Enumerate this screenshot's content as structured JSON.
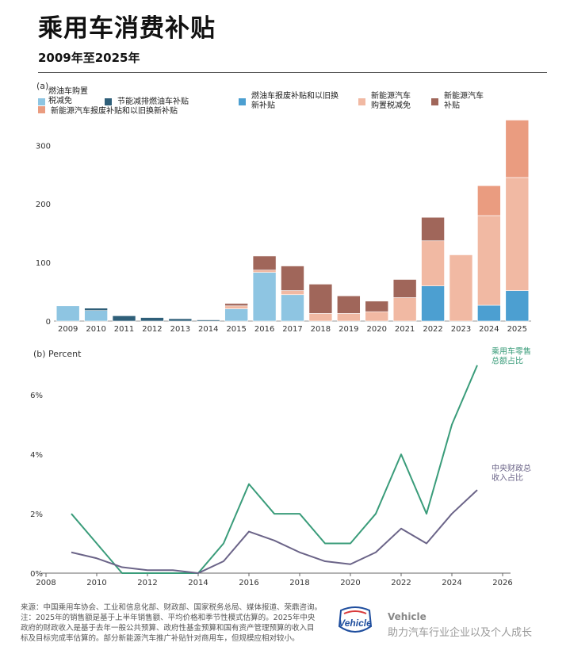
{
  "title": "乘用车消费补贴",
  "subtitle": "2009年至2025年",
  "chart_data": [
    {
      "type": "bar",
      "stacked": true,
      "panel_label": "(a)",
      "categories": [
        "2009",
        "2010",
        "2011",
        "2012",
        "2013",
        "2014",
        "2015",
        "2016",
        "2017",
        "2018",
        "2019",
        "2020",
        "2021",
        "2022",
        "2023",
        "2024",
        "2025"
      ],
      "ylim": [
        0,
        345
      ],
      "yticks": [
        0,
        100,
        200,
        300
      ],
      "ytick_labels": [
        "0",
        "100",
        "200",
        "300"
      ],
      "grid": false,
      "legend_position": "top",
      "series": [
        {
          "name_lines": [
            "燃油车购置",
            "税减免"
          ],
          "color": "#8ec5e2",
          "values": [
            26,
            18,
            0,
            0,
            0,
            0,
            21,
            83,
            45,
            0,
            0,
            0,
            0,
            0,
            0,
            0,
            0
          ]
        },
        {
          "name_lines": [
            "节能减排燃油车补贴"
          ],
          "color": "#2f5f79",
          "values": [
            0,
            4,
            9,
            6,
            4,
            2,
            0,
            0,
            0,
            0,
            0,
            0,
            0,
            0,
            0,
            0,
            0
          ]
        },
        {
          "name_lines": [
            "燃油车报废补贴和以旧换",
            "新补贴"
          ],
          "color": "#4c9fd1",
          "values": [
            0,
            0,
            0,
            0,
            0,
            0,
            0,
            0,
            0,
            0,
            0,
            0,
            0,
            60,
            0,
            27,
            52
          ]
        },
        {
          "name_lines": [
            "新能源汽车",
            "购置税减免"
          ],
          "color": "#f1b9a3",
          "values": [
            0,
            0,
            0,
            0,
            0,
            0,
            5,
            4,
            7,
            13,
            13,
            16,
            40,
            77,
            113,
            153,
            193
          ]
        },
        {
          "name_lines": [
            "新能源汽车",
            "补贴"
          ],
          "color": "#a0665a",
          "values": [
            0,
            0,
            0,
            0,
            0,
            0,
            4,
            24,
            42,
            50,
            30,
            18,
            31,
            40,
            0,
            0,
            0
          ]
        },
        {
          "name_lines": [
            "新能源汽车报废补贴和以旧换新补贴"
          ],
          "color": "#ea9c80",
          "values": [
            0,
            0,
            0,
            0,
            0,
            0,
            0,
            0,
            0,
            0,
            0,
            0,
            0,
            0,
            0,
            51,
            98
          ]
        }
      ]
    },
    {
      "type": "line",
      "panel_label": "(b) Percent",
      "xlim": [
        2008,
        2026
      ],
      "xticks": [
        2008,
        2010,
        2012,
        2014,
        2016,
        2018,
        2020,
        2022,
        2024,
        2026
      ],
      "ylim": [
        0,
        7.5
      ],
      "yticks": [
        0,
        2,
        4,
        6
      ],
      "ytick_labels": [
        "0%",
        "2%",
        "4%",
        "6%"
      ],
      "grid": false,
      "x": [
        2009,
        2010,
        2011,
        2012,
        2013,
        2014,
        2015,
        2016,
        2017,
        2018,
        2019,
        2020,
        2021,
        2022,
        2023,
        2024,
        2025
      ],
      "series": [
        {
          "name_lines": [
            "乘用车零售",
            "总额占比"
          ],
          "color": "#3a9c7a",
          "values": [
            2.0,
            1.0,
            0.0,
            0.0,
            0.0,
            0.0,
            1.0,
            3.0,
            2.0,
            2.0,
            1.0,
            1.0,
            2.0,
            4.0,
            2.0,
            5.0,
            7.0
          ]
        },
        {
          "name_lines": [
            "中央财政总",
            "收入占比"
          ],
          "color": "#6b6488",
          "values": [
            0.7,
            0.5,
            0.2,
            0.1,
            0.1,
            0.0,
            0.4,
            1.4,
            1.1,
            0.7,
            0.4,
            0.3,
            0.7,
            1.5,
            1.0,
            2.0,
            2.8
          ]
        }
      ]
    }
  ],
  "footer": {
    "lines": [
      "来源：中国乘用车协会、工业和信息化部、财政部、国家税务总局、媒体报道、荣鼎咨询。",
      "注：2025年的销售额是基于上半年销售额、平均价格和季节性模式估算的。2025年中央",
      "政府的财政收入是基于去年一般公共预算、政府性基金预算和国有资产管理预算的收入目",
      "标及目标完成率估算的。部分新能源汽车推广补贴针对商用车，但规模应相对较小。"
    ]
  },
  "brand": {
    "logo_text": "Vehicle",
    "name": "Vehicle",
    "tagline": "助力汽车行业企业以及个人成长",
    "colors": {
      "logo_blue": "#1f4e9e",
      "logo_red": "#d83a3a"
    }
  }
}
